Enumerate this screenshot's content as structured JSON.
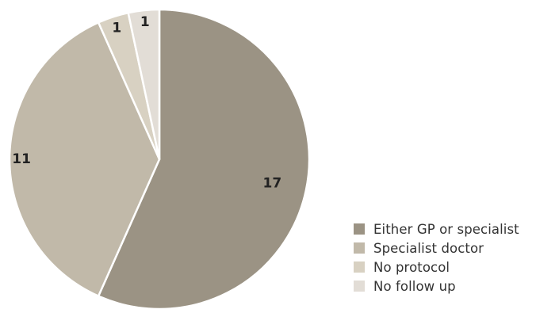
{
  "chart_data": {
    "type": "pie",
    "categories": [
      "Either GP or specialist",
      "Specialist doctor",
      "No protocol",
      "No follow up"
    ],
    "values": [
      17,
      11,
      1,
      1
    ],
    "colors": [
      "#9b9384",
      "#c1b9a9",
      "#d8d1c2",
      "#e2ddd6"
    ],
    "title": "",
    "legend": "bottom-right",
    "start": "12 o'clock",
    "direction": "clockwise"
  }
}
